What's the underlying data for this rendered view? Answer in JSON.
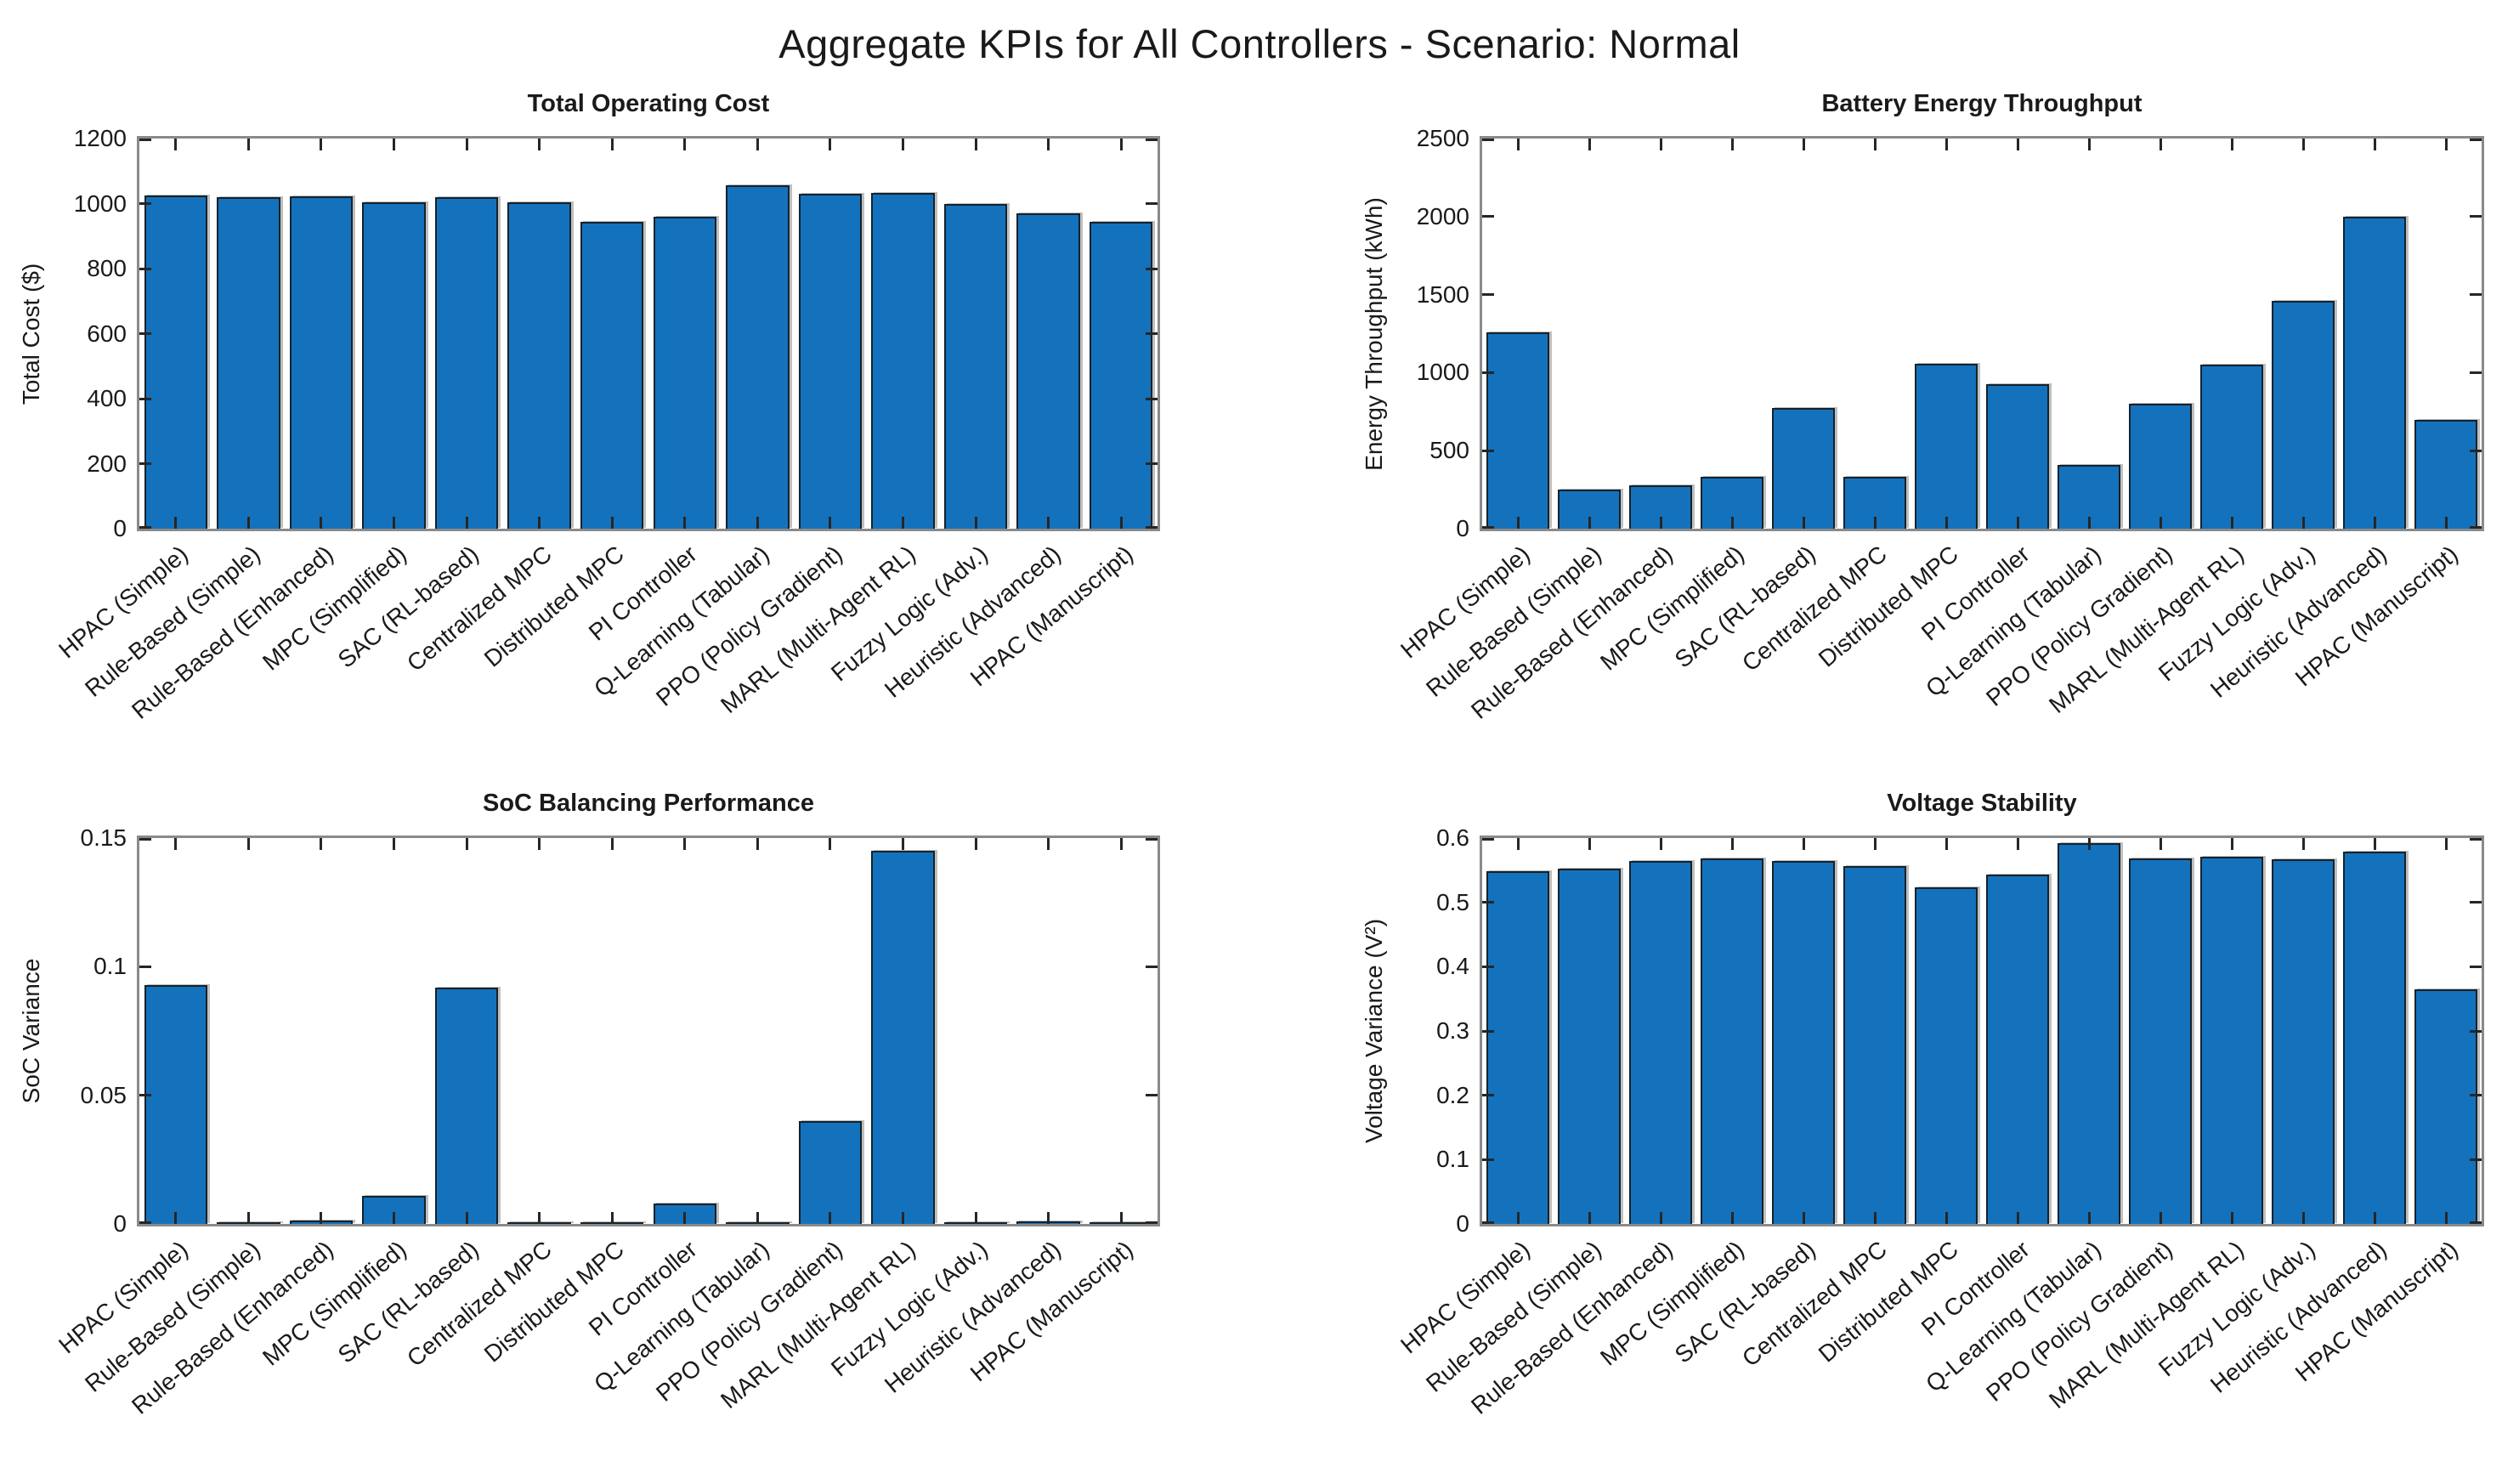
{
  "figure": {
    "title": "Aggregate KPIs for All Controllers - Scenario: Normal",
    "background_color": "#ffffff",
    "bar_color": "#1472bc",
    "bar_edge_color": "#14222b",
    "axis_box_color": "#8a8a8a",
    "tick_color": "#262626",
    "text_color": "#1a1a1a"
  },
  "categories": [
    "HPAC (Simple)",
    "Rule-Based (Simple)",
    "Rule-Based (Enhanced)",
    "MPC (Simplified)",
    "SAC (RL-based)",
    "Centralized MPC",
    "Distributed MPC",
    "PI Controller",
    "Q-Learning (Tabular)",
    "PPO (Policy Gradient)",
    "MARL (Multi-Agent RL)",
    "Fuzzy Logic (Adv.)",
    "Heuristic (Advanced)",
    "HPAC (Manuscript)"
  ],
  "chart_data": [
    {
      "type": "bar",
      "title": "Total Operating Cost",
      "ylabel": "Total Cost ($)",
      "xlabel": "",
      "ylim": [
        0,
        1200
      ],
      "yticks": [
        0,
        200,
        400,
        600,
        800,
        1000,
        1200
      ],
      "ytick_labels": [
        "0",
        "200",
        "400",
        "600",
        "800",
        "1000",
        "1200"
      ],
      "grid": false,
      "legend": null,
      "values": [
        1025,
        1020,
        1022,
        1003,
        1020,
        1004,
        945,
        960,
        1055,
        1030,
        1032,
        1000,
        970,
        945
      ]
    },
    {
      "type": "bar",
      "title": "Battery Energy Throughput",
      "ylabel": "Energy Throughput (kWh)",
      "xlabel": "",
      "ylim": [
        0,
        2500
      ],
      "yticks": [
        0,
        500,
        1000,
        1500,
        2000,
        2500
      ],
      "ytick_labels": [
        "0",
        "500",
        "1000",
        "1500",
        "2000",
        "2500"
      ],
      "grid": false,
      "legend": null,
      "values": [
        1260,
        250,
        280,
        335,
        775,
        335,
        1055,
        925,
        410,
        800,
        1050,
        1460,
        2000,
        695
      ]
    },
    {
      "type": "bar",
      "title": "SoC Balancing Performance",
      "ylabel": "SoC Variance",
      "xlabel": "",
      "ylim": [
        0,
        0.15
      ],
      "yticks": [
        0,
        0.05,
        0.1,
        0.15
      ],
      "ytick_labels": [
        "0",
        "0.05",
        "0.1",
        "0.15"
      ],
      "grid": false,
      "legend": null,
      "values": [
        0.093,
        0.0008,
        0.0012,
        0.011,
        0.092,
        0.0008,
        0.0008,
        0.008,
        0.0004,
        0.04,
        0.145,
        0.0002,
        0.001,
        0.0001
      ]
    },
    {
      "type": "bar",
      "title": "Voltage Stability",
      "ylabel": "Voltage Variance (V²)",
      "xlabel": "",
      "ylim": [
        0,
        0.6
      ],
      "yticks": [
        0,
        0.1,
        0.2,
        0.3,
        0.4,
        0.5,
        0.6
      ],
      "ytick_labels": [
        "0",
        "0.1",
        "0.2",
        "0.3",
        "0.4",
        "0.5",
        "0.6"
      ],
      "grid": false,
      "legend": null,
      "values": [
        0.548,
        0.553,
        0.564,
        0.568,
        0.564,
        0.556,
        0.523,
        0.543,
        0.592,
        0.568,
        0.571,
        0.567,
        0.579,
        0.365
      ]
    }
  ]
}
